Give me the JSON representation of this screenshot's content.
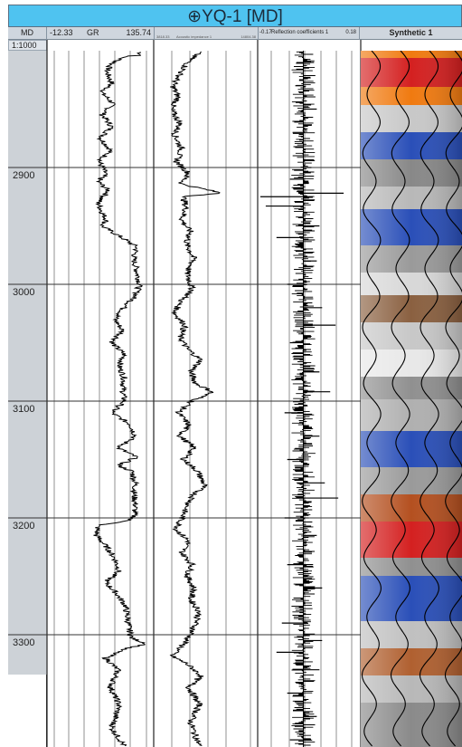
{
  "title": "⊕YQ-1 [MD]",
  "header": {
    "md": "MD",
    "gr_min": "-12.33",
    "gr_name": "GR",
    "gr_max": "135.74",
    "ai_min": "3818.33",
    "ai_name": "Acoustic impedance 1",
    "ai_max": "14804.38",
    "rc_min": "-0.17",
    "rc_name": "Reflection coefficients 1",
    "rc_max": "0.18",
    "synthetic": "Synthetic 1"
  },
  "scale": "1:1000",
  "chart_data": {
    "type": "line",
    "y_axis": {
      "label": "MD",
      "ylim": [
        2800,
        3395
      ],
      "ticks": [
        2900,
        3000,
        3100,
        3200,
        3300
      ],
      "reversed": true
    },
    "depth_labels": [
      "2900",
      "3000",
      "3100",
      "3200",
      "3300"
    ],
    "series": [
      {
        "name": "GR",
        "xlim": [
          -12.33,
          135.74
        ],
        "points": [
          [
            2800,
            125
          ],
          [
            2804,
            126
          ],
          [
            2805,
            100
          ],
          [
            2812,
            78
          ],
          [
            2818,
            72
          ],
          [
            2828,
            80
          ],
          [
            2836,
            64
          ],
          [
            2845,
            82
          ],
          [
            2855,
            65
          ],
          [
            2865,
            80
          ],
          [
            2875,
            62
          ],
          [
            2885,
            78
          ],
          [
            2895,
            60
          ],
          [
            2905,
            70
          ],
          [
            2912,
            58
          ],
          [
            2920,
            75
          ],
          [
            2930,
            58
          ],
          [
            2940,
            66
          ],
          [
            2945,
            72
          ],
          [
            2950,
            64
          ],
          [
            2958,
            90
          ],
          [
            2968,
            120
          ],
          [
            2978,
            115
          ],
          [
            2988,
            120
          ],
          [
            3000,
            125
          ],
          [
            3010,
            118
          ],
          [
            3020,
            100
          ],
          [
            3030,
            85
          ],
          [
            3040,
            98
          ],
          [
            3050,
            80
          ],
          [
            3060,
            100
          ],
          [
            3070,
            92
          ],
          [
            3080,
            100
          ],
          [
            3090,
            98
          ],
          [
            3100,
            100
          ],
          [
            3110,
            80
          ],
          [
            3120,
            110
          ],
          [
            3130,
            118
          ],
          [
            3140,
            90
          ],
          [
            3148,
            120
          ],
          [
            3155,
            90
          ],
          [
            3160,
            112
          ],
          [
            3170,
            118
          ],
          [
            3180,
            116
          ],
          [
            3190,
            118
          ],
          [
            3200,
            115
          ],
          [
            3204,
            95
          ],
          [
            3206,
            58
          ],
          [
            3215,
            55
          ],
          [
            3225,
            72
          ],
          [
            3235,
            85
          ],
          [
            3245,
            92
          ],
          [
            3255,
            70
          ],
          [
            3265,
            88
          ],
          [
            3275,
            102
          ],
          [
            3285,
            105
          ],
          [
            3295,
            108
          ],
          [
            3303,
            112
          ],
          [
            3308,
            138
          ],
          [
            3312,
            100
          ],
          [
            3320,
            70
          ],
          [
            3330,
            90
          ],
          [
            3345,
            78
          ],
          [
            3360,
            92
          ],
          [
            3380,
            80
          ],
          [
            3395,
            100
          ]
        ]
      },
      {
        "name": "Acoustic impedance 1",
        "xlim": [
          3818.33,
          14804.38
        ],
        "points": [
          [
            2800,
            9200
          ],
          [
            2806,
            8200
          ],
          [
            2812,
            7500
          ],
          [
            2820,
            6800
          ],
          [
            2830,
            6000
          ],
          [
            2840,
            6600
          ],
          [
            2850,
            5800
          ],
          [
            2862,
            6800
          ],
          [
            2872,
            6200
          ],
          [
            2884,
            7000
          ],
          [
            2895,
            6400
          ],
          [
            2905,
            7800
          ],
          [
            2914,
            6900
          ],
          [
            2922,
            11600
          ],
          [
            2925,
            7200
          ],
          [
            2935,
            7500
          ],
          [
            2945,
            7000
          ],
          [
            2955,
            8000
          ],
          [
            2965,
            7500
          ],
          [
            2978,
            8400
          ],
          [
            2990,
            7600
          ],
          [
            3005,
            8200
          ],
          [
            3015,
            6800
          ],
          [
            3025,
            6200
          ],
          [
            3035,
            7400
          ],
          [
            3045,
            6800
          ],
          [
            3055,
            7600
          ],
          [
            3065,
            9200
          ],
          [
            3075,
            8000
          ],
          [
            3085,
            8600
          ],
          [
            3092,
            10500
          ],
          [
            3100,
            8200
          ],
          [
            3110,
            6600
          ],
          [
            3120,
            7800
          ],
          [
            3130,
            6800
          ],
          [
            3140,
            8400
          ],
          [
            3150,
            7200
          ],
          [
            3160,
            8800
          ],
          [
            3172,
            9600
          ],
          [
            3180,
            8400
          ],
          [
            3190,
            7600
          ],
          [
            3200,
            7000
          ],
          [
            3210,
            6400
          ],
          [
            3220,
            7800
          ],
          [
            3230,
            7000
          ],
          [
            3240,
            8200
          ],
          [
            3250,
            7600
          ],
          [
            3260,
            8400
          ],
          [
            3270,
            8000
          ],
          [
            3280,
            9000
          ],
          [
            3290,
            8600
          ],
          [
            3300,
            8000
          ],
          [
            3310,
            7000
          ],
          [
            3318,
            5800
          ],
          [
            3325,
            7600
          ],
          [
            3335,
            9200
          ],
          [
            3345,
            7800
          ],
          [
            3360,
            9000
          ],
          [
            3375,
            8000
          ],
          [
            3395,
            9000
          ]
        ]
      },
      {
        "name": "Reflection coefficients 1",
        "xlim": [
          -0.17,
          0.18
        ],
        "points": [
          [
            2810,
            0.04
          ],
          [
            2830,
            -0.03
          ],
          [
            2850,
            0.05
          ],
          [
            2870,
            -0.04
          ],
          [
            2900,
            0.03
          ],
          [
            2910,
            -0.05
          ],
          [
            2922,
            0.15
          ],
          [
            2925,
            -0.16
          ],
          [
            2933,
            -0.14
          ],
          [
            2950,
            0.06
          ],
          [
            2960,
            -0.1
          ],
          [
            2980,
            0.05
          ],
          [
            3000,
            -0.06
          ],
          [
            3020,
            0.07
          ],
          [
            3035,
            0.12
          ],
          [
            3050,
            -0.05
          ],
          [
            3075,
            0.06
          ],
          [
            3092,
            0.1
          ],
          [
            3110,
            -0.07
          ],
          [
            3130,
            0.06
          ],
          [
            3150,
            -0.06
          ],
          [
            3170,
            0.08
          ],
          [
            3183,
            0.13
          ],
          [
            3200,
            -0.07
          ],
          [
            3215,
            0.05
          ],
          [
            3240,
            -0.06
          ],
          [
            3260,
            0.07
          ],
          [
            3290,
            -0.08
          ],
          [
            3305,
            0.07
          ],
          [
            3315,
            -0.1
          ],
          [
            3330,
            0.06
          ],
          [
            3350,
            -0.06
          ],
          [
            3370,
            0.05
          ],
          [
            3390,
            -0.05
          ]
        ]
      }
    ],
    "grid": true
  },
  "colors": {
    "title_bg": "#4fc3f0",
    "trace": "#000000",
    "grid": "#555555",
    "seis_red": "#d42020",
    "seis_blue": "#2a4fb8",
    "seis_orange": "#f07a10"
  }
}
